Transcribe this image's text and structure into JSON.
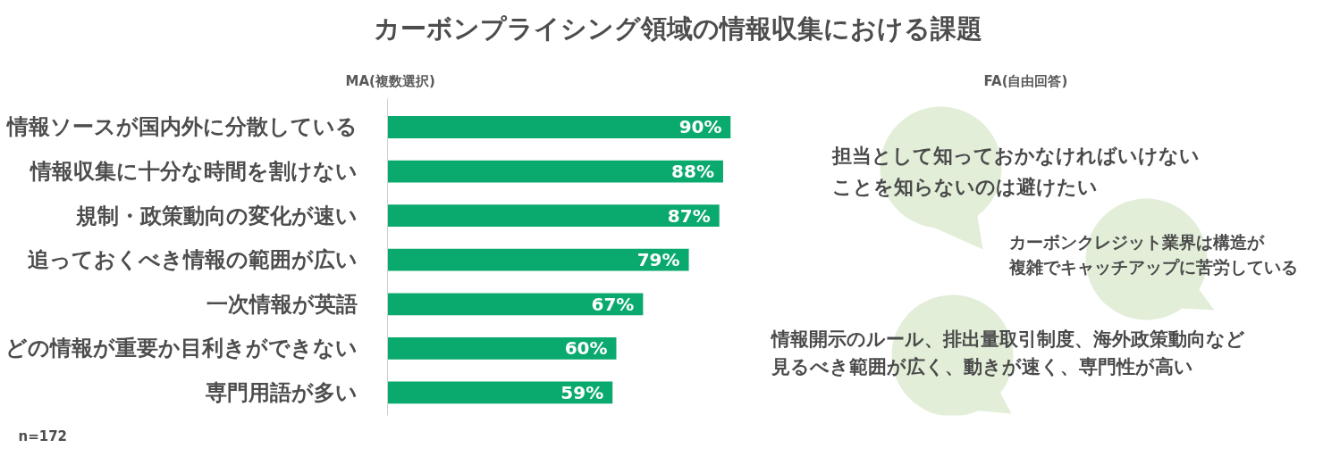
{
  "chart_data": [
    {
      "type": "bar",
      "orientation": "horizontal",
      "title": "カーボンプライシング領域の情報収集における課題",
      "subtitle": "MA(複数選択)",
      "categories": [
        "情報ソースが国内外に分散している",
        "情報収集に十分な時間を割けない",
        "規制・政策動向の変化が速い",
        "追っておくべき情報の範囲が広い",
        "一次情報が英語",
        "どの情報が重要か目利きができない",
        "専門用語が多い"
      ],
      "values": [
        90,
        88,
        87,
        79,
        67,
        60,
        59
      ],
      "value_labels": [
        "90%",
        "88%",
        "87%",
        "79%",
        "67%",
        "60%",
        "59%"
      ],
      "color": "#0aa96e",
      "tick_labels": "y",
      "annotations": [
        "n=172"
      ]
    },
    {
      "type": "other",
      "title": "FA(自由回答)",
      "annotations": [
        "担当として知っておかなければいけないことを知らないのは避けたい",
        "カーボンクレジット業界は構造が複雑でキャッチアップに苦労している",
        "情報開示のルール、排出量取引制度、海外政策動向など見るべき範囲が広く、動きが速く、専門性が高い"
      ]
    }
  ]
}
